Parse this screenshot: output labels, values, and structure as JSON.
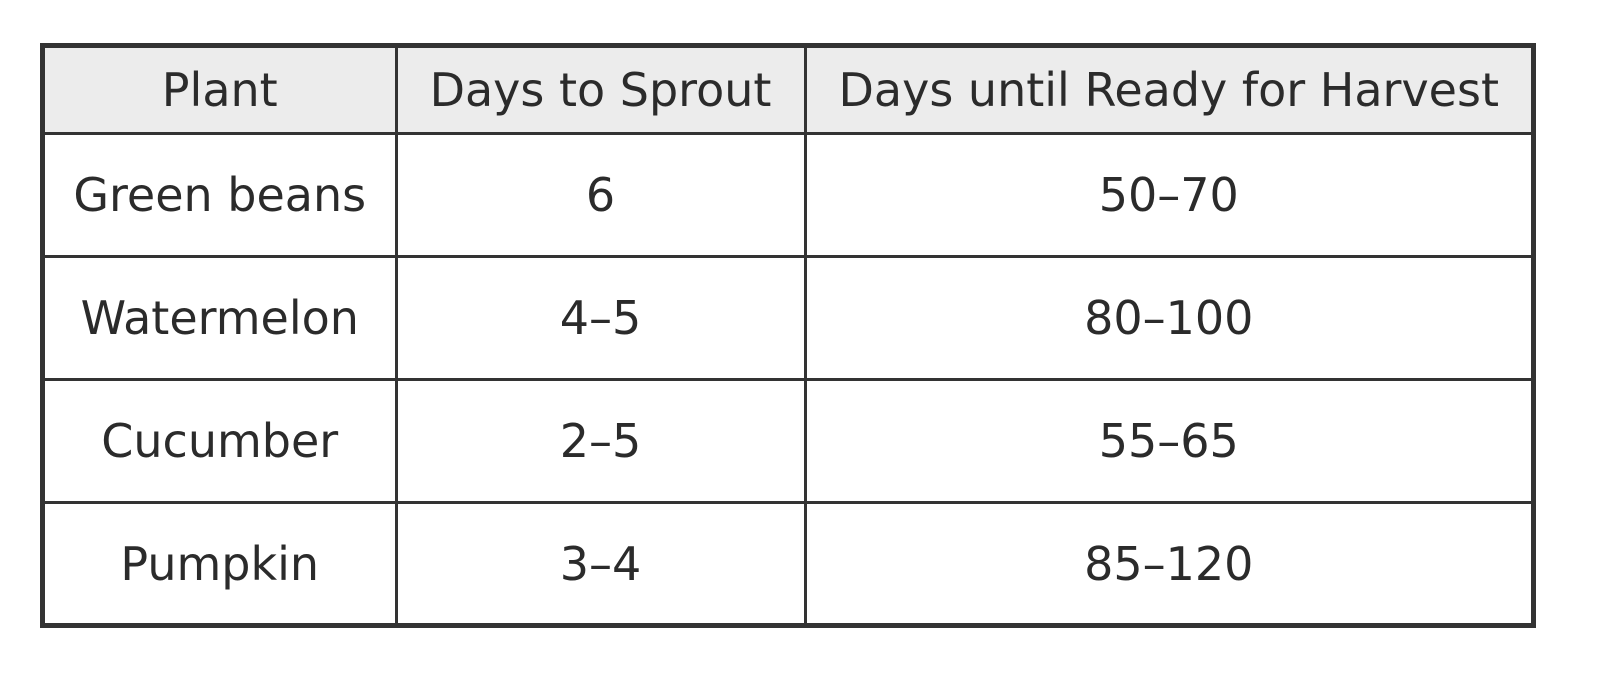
{
  "table": {
    "headers": [
      "Plant",
      "Days to Sprout",
      "Days until Ready for Harvest"
    ],
    "rows": [
      [
        "Green beans",
        "6",
        "50–70"
      ],
      [
        "Watermelon",
        "4–5",
        "80–100"
      ],
      [
        "Cucumber",
        "2–5",
        "55–65"
      ],
      [
        "Pumpkin",
        "3–4",
        "85–120"
      ]
    ]
  },
  "colors": {
    "header_background": "#ececec",
    "border": "#333333",
    "text": "#2b2b2b"
  }
}
